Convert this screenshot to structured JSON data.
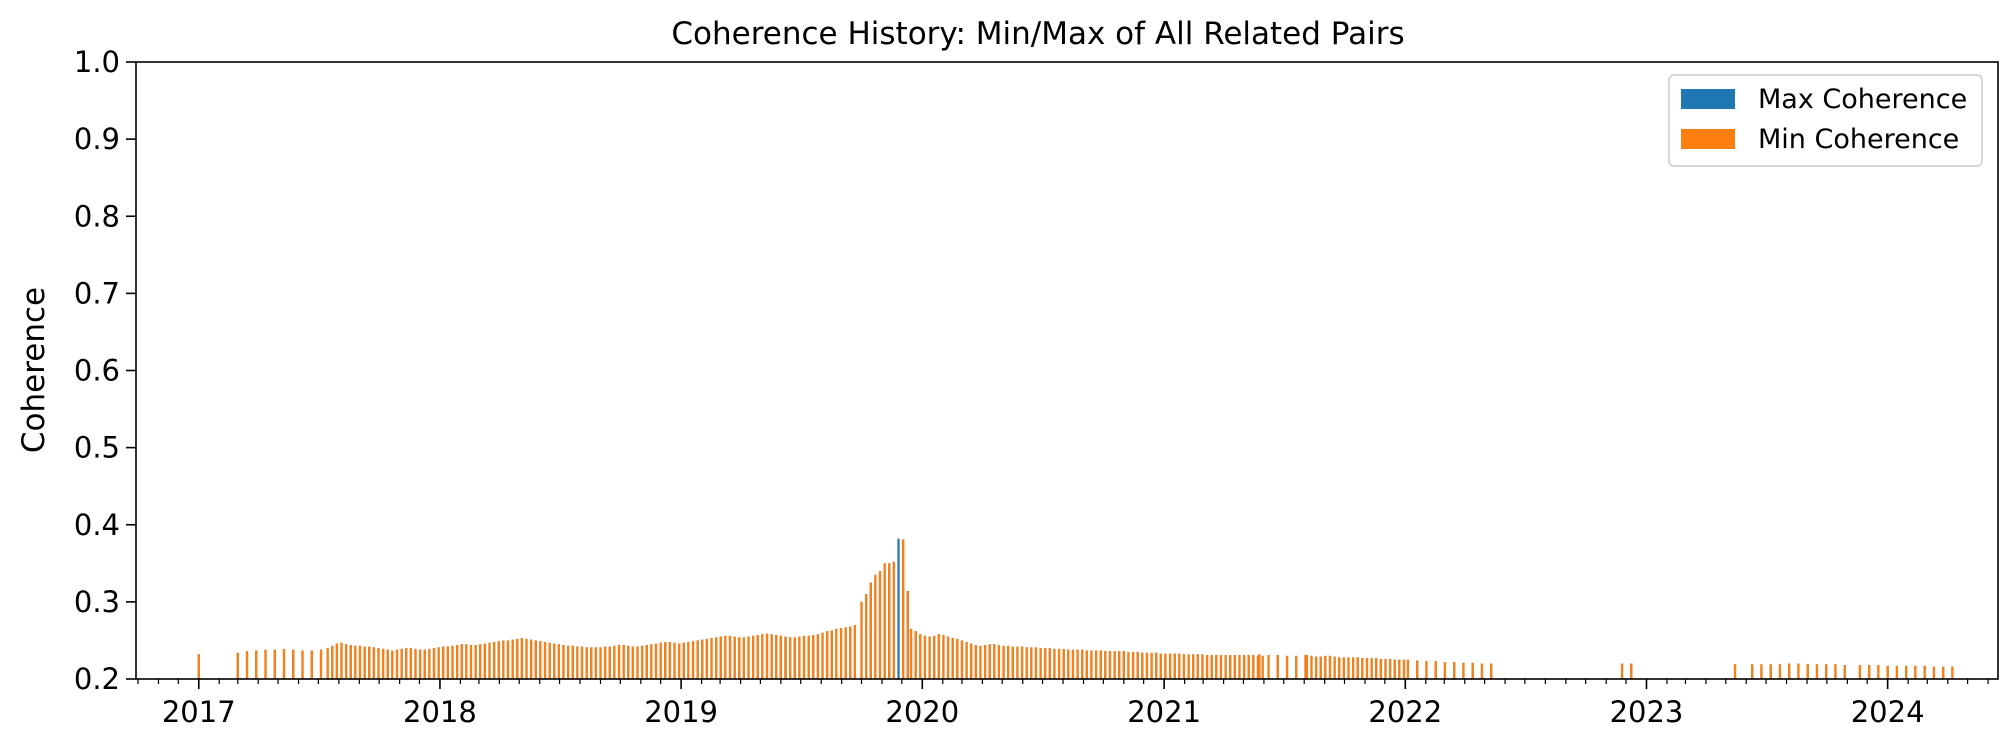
{
  "chart_data": {
    "type": "bar",
    "title": "Coherence History: Min/Max of All Related Pairs",
    "xlabel": "",
    "ylabel": "Coherence",
    "ylim": [
      0.2,
      1.0
    ],
    "xlim": [
      "2016-09-28",
      "2024-06-16"
    ],
    "yticks": [
      "0.2",
      "0.3",
      "0.4",
      "0.5",
      "0.6",
      "0.7",
      "0.8",
      "0.9",
      "1.0"
    ],
    "xticks": [
      "2017",
      "2018",
      "2019",
      "2020",
      "2021",
      "2022",
      "2023",
      "2024"
    ],
    "grid": false,
    "legend": {
      "placement": "top-right",
      "entries": [
        "Max Coherence",
        "Min Coherence"
      ]
    },
    "colors": {
      "max": "#1f77b4",
      "min": "#ff7f0e"
    },
    "segments": [
      {
        "start": "2017-01-01",
        "end": "2017-01-08",
        "step_days": 7,
        "values": [
          0.232
        ]
      },
      {
        "start": "2017-03-01",
        "end": "2017-07-15",
        "step_days": 14,
        "values": [
          0.234,
          0.236,
          0.237,
          0.238,
          0.238,
          0.239,
          0.238,
          0.237,
          0.237,
          0.238
        ]
      },
      {
        "start": "2017-07-15",
        "end": "2019-06-01",
        "step_days": 7,
        "values": [
          0.24,
          0.243,
          0.246,
          0.247,
          0.245,
          0.244,
          0.243,
          0.243,
          0.242,
          0.242,
          0.241,
          0.24,
          0.239,
          0.238,
          0.237,
          0.238,
          0.239,
          0.24,
          0.24,
          0.239,
          0.238,
          0.238,
          0.239,
          0.24,
          0.241,
          0.242,
          0.242,
          0.243,
          0.244,
          0.245,
          0.245,
          0.244,
          0.244,
          0.245,
          0.246,
          0.247,
          0.248,
          0.249,
          0.25,
          0.25,
          0.251,
          0.252,
          0.253,
          0.252,
          0.251,
          0.25,
          0.249,
          0.248,
          0.247,
          0.246,
          0.245,
          0.244,
          0.243,
          0.243,
          0.242,
          0.242,
          0.241,
          0.241,
          0.241,
          0.241,
          0.242,
          0.242,
          0.243,
          0.244,
          0.244,
          0.243,
          0.242,
          0.242,
          0.243,
          0.244,
          0.245,
          0.246,
          0.247,
          0.248,
          0.248,
          0.247,
          0.246,
          0.247,
          0.248,
          0.249,
          0.25,
          0.251,
          0.252,
          0.253,
          0.254,
          0.255,
          0.256,
          0.256,
          0.255,
          0.254,
          0.254,
          0.255,
          0.256,
          0.257,
          0.258,
          0.259,
          0.258,
          0.257,
          0.256,
          0.255
        ]
      },
      {
        "start": "2019-06-01",
        "end": "2019-10-01",
        "step_days": 7,
        "values": [
          0.252,
          0.253,
          0.254,
          0.254,
          0.255,
          0.256,
          0.256,
          0.257,
          0.258,
          0.26,
          0.262,
          0.263,
          0.265,
          0.266,
          0.267,
          0.268,
          0.27
        ]
      },
      {
        "start": "2019-10-01",
        "end": "2019-12-15",
        "step_days": 7,
        "values": [
          0.3,
          0.31,
          0.325,
          0.335,
          0.34,
          0.35,
          0.35,
          0.352,
          0.382,
          0.381,
          0.314
        ]
      },
      {
        "start": "2019-12-15",
        "end": "2021-05-25",
        "step_days": 7,
        "values": [
          0.265,
          0.262,
          0.258,
          0.256,
          0.255,
          0.256,
          0.258,
          0.257,
          0.255,
          0.253,
          0.252,
          0.25,
          0.248,
          0.246,
          0.244,
          0.243,
          0.244,
          0.245,
          0.245,
          0.244,
          0.243,
          0.243,
          0.242,
          0.242,
          0.242,
          0.241,
          0.241,
          0.241,
          0.24,
          0.24,
          0.24,
          0.239,
          0.239,
          0.239,
          0.238,
          0.238,
          0.238,
          0.238,
          0.237,
          0.237,
          0.237,
          0.237,
          0.236,
          0.236,
          0.236,
          0.236,
          0.236,
          0.235,
          0.235,
          0.235,
          0.234,
          0.234,
          0.234,
          0.234,
          0.233,
          0.233,
          0.233,
          0.233,
          0.233,
          0.232,
          0.232,
          0.232,
          0.232,
          0.232,
          0.231,
          0.231,
          0.231,
          0.231,
          0.231,
          0.231,
          0.231,
          0.231,
          0.231,
          0.231,
          0.231,
          0.23,
          0.23
        ]
      },
      {
        "start": "2021-05-25",
        "end": "2021-08-05",
        "step_days": 14,
        "values": [
          0.232,
          0.231,
          0.231,
          0.23,
          0.23,
          0.231
        ]
      },
      {
        "start": "2021-08-05",
        "end": "2022-01-05",
        "step_days": 7,
        "values": [
          0.231,
          0.23,
          0.229,
          0.229,
          0.23,
          0.23,
          0.229,
          0.228,
          0.228,
          0.228,
          0.228,
          0.228,
          0.227,
          0.227,
          0.227,
          0.227,
          0.226,
          0.226,
          0.226,
          0.225,
          0.225,
          0.225
        ]
      },
      {
        "start": "2022-01-05",
        "end": "2022-05-20",
        "step_days": 14,
        "values": [
          0.225,
          0.224,
          0.223,
          0.223,
          0.222,
          0.222,
          0.221,
          0.221,
          0.22,
          0.22
        ]
      },
      {
        "start": "2022-11-25",
        "end": "2022-12-15",
        "step_days": 14,
        "values": [
          0.22,
          0.22
        ]
      },
      {
        "start": "2023-05-15",
        "end": "2023-05-22",
        "step_days": 7,
        "values": [
          0.219
        ]
      },
      {
        "start": "2023-06-10",
        "end": "2023-11-01",
        "step_days": 14,
        "values": [
          0.219,
          0.219,
          0.219,
          0.219,
          0.22,
          0.22,
          0.219,
          0.219,
          0.219,
          0.219,
          0.218
        ]
      },
      {
        "start": "2023-11-20",
        "end": "2024-04-15",
        "step_days": 14,
        "values": [
          0.218,
          0.218,
          0.218,
          0.217,
          0.217,
          0.217,
          0.217,
          0.217,
          0.216,
          0.216,
          0.216
        ]
      }
    ]
  }
}
